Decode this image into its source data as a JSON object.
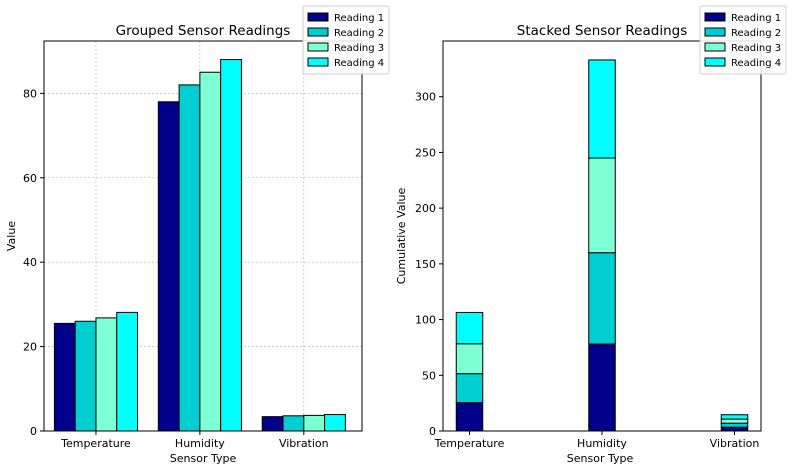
{
  "colors": [
    "#00008b",
    "#00ced1",
    "#7fffd4",
    "#00ffff"
  ],
  "chart_data": [
    {
      "type": "bar",
      "title": "Grouped Sensor Readings",
      "xlabel": "Sensor Type",
      "ylabel": "Value",
      "categories": [
        "Temperature",
        "Humidity",
        "Vibration"
      ],
      "series": [
        {
          "name": "Reading 1",
          "values": [
            25.5,
            78,
            3.4
          ]
        },
        {
          "name": "Reading 2",
          "values": [
            26.0,
            82,
            3.6
          ]
        },
        {
          "name": "Reading 3",
          "values": [
            26.8,
            85,
            3.7
          ]
        },
        {
          "name": "Reading 4",
          "values": [
            28.1,
            88,
            3.9
          ]
        }
      ],
      "ylim": [
        0,
        92.4
      ],
      "yticks": [
        "0",
        "20",
        "40",
        "60",
        "80"
      ],
      "grid": true,
      "legend": "top-right"
    },
    {
      "type": "bar",
      "stacked": true,
      "title": "Stacked Sensor Readings",
      "xlabel": "Sensor Type",
      "ylabel": "Cumulative Value",
      "categories": [
        "Temperature",
        "Humidity",
        "Vibration"
      ],
      "series": [
        {
          "name": "Reading 1",
          "values": [
            25.5,
            78,
            3.4
          ]
        },
        {
          "name": "Reading 2",
          "values": [
            26.0,
            82,
            3.6
          ]
        },
        {
          "name": "Reading 3",
          "values": [
            26.8,
            85,
            3.7
          ]
        },
        {
          "name": "Reading 4",
          "values": [
            28.1,
            88,
            3.9
          ]
        }
      ],
      "ylim": [
        0,
        350
      ],
      "yticks": [
        "0",
        "50",
        "100",
        "150",
        "200",
        "250",
        "300"
      ],
      "grid": false,
      "legend": "top-right"
    }
  ]
}
